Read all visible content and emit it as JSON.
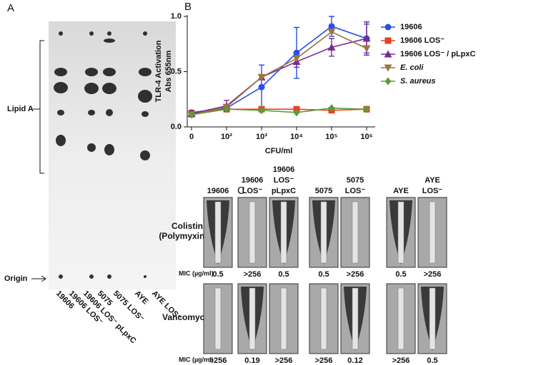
{
  "panel_a": {
    "letter": "A",
    "lipid_label": "Lipid A",
    "origin_label": "Origin",
    "lanes": [
      "19606",
      "19606 LOS⁻",
      "19606 LOS⁻ pLpxC",
      "5075",
      "5075 LOS⁻",
      "AYE",
      "AYE LOS⁻"
    ]
  },
  "chart_data": {
    "type": "line",
    "letter": "B",
    "y_label": [
      "TLR-4 Activation",
      "Abs 655nm"
    ],
    "x_label": "CFU/ml",
    "categories": [
      "0",
      "10²",
      "10³",
      "10⁴",
      "10⁵",
      "10⁶"
    ],
    "ylim": [
      0,
      1
    ],
    "yticks": [
      {
        "value": 0,
        "label": "0.0"
      },
      0.5,
      {
        "value": 1,
        "label": "1.0"
      }
    ],
    "series": [
      {
        "name": "19606",
        "color": "#2a4ee8",
        "marker": "circle",
        "values": [
          0.13,
          0.17,
          0.36,
          0.67,
          0.91,
          0.8
        ],
        "errors": [
          0.02,
          0.02,
          0.2,
          0.23,
          0.09,
          0.13
        ]
      },
      {
        "name": "19606 LOS⁻",
        "color": "#e8401c",
        "marker": "square",
        "values": [
          0.12,
          0.16,
          0.16,
          0.16,
          0.15,
          0.16
        ]
      },
      {
        "name": "19606 LOS⁻ / pLpxC",
        "color": "#7b2a94",
        "marker": "triangle",
        "values": [
          0.12,
          0.19,
          0.45,
          0.59,
          0.72,
          0.8
        ],
        "errors": [
          0.03,
          0.05,
          0.02,
          0.05,
          0.08,
          0.15
        ]
      },
      {
        "name": "E. coli",
        "color": "#9b7440",
        "marker": "down-triangle",
        "values": [
          0.11,
          0.18,
          0.45,
          0.62,
          0.86,
          0.71
        ]
      },
      {
        "name": "S. aureus",
        "color": "#5f9a3a",
        "marker": "diamond",
        "values": [
          0.11,
          0.16,
          0.15,
          0.13,
          0.17,
          0.16
        ]
      }
    ]
  },
  "panel_c": {
    "letter": "C",
    "columns": [
      [
        "19606"
      ],
      [
        "19606",
        "LOS⁻"
      ],
      [
        "19606",
        "LOS⁻",
        "pLpxC"
      ],
      [
        "5075"
      ],
      [
        "5075",
        "LOS⁻"
      ],
      [
        "AYE"
      ],
      [
        "AYE",
        "LOS⁻"
      ]
    ],
    "rows": [
      {
        "label": [
          "Colistin",
          "(Polymyxin E)"
        ],
        "mic_label": "MIC (µg/ml)",
        "mic": [
          "0.5",
          ">256",
          "0.5",
          "0.5",
          ">256",
          "0.5",
          ">256"
        ]
      },
      {
        "label": [
          "Vancomycin"
        ],
        "mic_label": "MIC (µg/ml)",
        "mic": [
          ">256",
          "0.19",
          ">256",
          ">256",
          "0.12",
          ">256",
          "0.5"
        ]
      }
    ]
  }
}
